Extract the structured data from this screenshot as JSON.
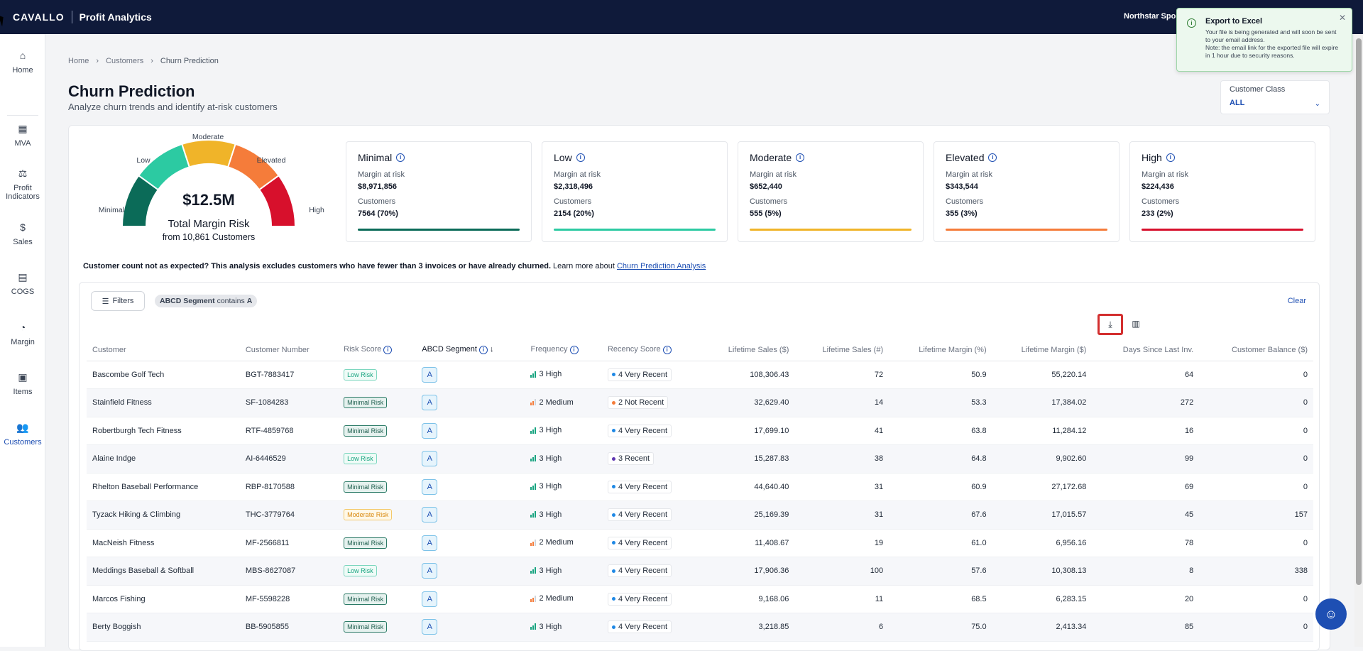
{
  "header": {
    "logo": "CAVALLO",
    "app_title": "Profit Analytics",
    "org": "Northstar Spo"
  },
  "sidebar": {
    "items": [
      {
        "label": "Home",
        "icon": "home-icon"
      },
      {
        "label": "MVA",
        "icon": "calculator-icon"
      },
      {
        "label": "Profit Indicators",
        "icon": "indicators-icon"
      },
      {
        "label": "Sales",
        "icon": "dollar-icon"
      },
      {
        "label": "COGS",
        "icon": "receipt-icon"
      },
      {
        "label": "Margin",
        "icon": "pie-chart-icon"
      },
      {
        "label": "Items",
        "icon": "items-icon"
      },
      {
        "label": "Customers",
        "icon": "customers-icon",
        "active": true
      }
    ]
  },
  "breadcrumb": [
    "Home",
    "Customers",
    "Churn Prediction"
  ],
  "page": {
    "title": "Churn Prediction",
    "subtitle": "Analyze churn trends and identify at-risk customers"
  },
  "customer_class": {
    "label": "Customer Class",
    "value": "ALL"
  },
  "gauge": {
    "value": "$12.5M",
    "label": "Total Margin Risk",
    "sub": "from 10,861 Customers",
    "segments": [
      "Minimal",
      "Low",
      "Moderate",
      "Elevated",
      "High"
    ],
    "colors": [
      "#0b6b58",
      "#2ccaa2",
      "#f0b429",
      "#f57c3a",
      "#d7102c"
    ]
  },
  "risk_cards": [
    {
      "title": "Minimal",
      "margin_label": "Margin at risk",
      "margin": "$8,971,856",
      "cust_label": "Customers",
      "customers": "7564 (70%)",
      "color": "#0b6b58"
    },
    {
      "title": "Low",
      "margin_label": "Margin at risk",
      "margin": "$2,318,496",
      "cust_label": "Customers",
      "customers": "2154 (20%)",
      "color": "#2ccaa2"
    },
    {
      "title": "Moderate",
      "margin_label": "Margin at risk",
      "margin": "$652,440",
      "cust_label": "Customers",
      "customers": "555 (5%)",
      "color": "#f0b429"
    },
    {
      "title": "Elevated",
      "margin_label": "Margin at risk",
      "margin": "$343,544",
      "cust_label": "Customers",
      "customers": "355 (3%)",
      "color": "#f57c3a"
    },
    {
      "title": "High",
      "margin_label": "Margin at risk",
      "margin": "$224,436",
      "cust_label": "Customers",
      "customers": "233 (2%)",
      "color": "#d7102c"
    }
  ],
  "note": {
    "bold": "Customer count not as expected? This analysis excludes customers who have fewer than 3 invoices or have already churned.",
    "text": " Learn more about ",
    "link": "Churn Prediction Analysis"
  },
  "filters": {
    "button": "Filters",
    "chip_field": "ABCD Segment",
    "chip_op": "contains",
    "chip_val": "A",
    "clear": "Clear"
  },
  "table": {
    "columns": [
      "Customer",
      "Customer Number",
      "Risk Score",
      "ABCD Segment",
      "Frequency",
      "Recency Score",
      "Lifetime Sales ($)",
      "Lifetime Sales (#)",
      "Lifetime Margin (%)",
      "Lifetime Margin ($)",
      "Days Since Last Inv.",
      "Customer Balance ($)"
    ],
    "rows": [
      {
        "customer": "Bascombe Golf Tech",
        "number": "BGT-7883417",
        "risk": "Low Risk",
        "seg": "A",
        "freq": "3 High",
        "rec": "4 Very Recent",
        "sales": "108,306.43",
        "sales_n": "72",
        "margin_pct": "50.9",
        "margin": "55,220.14",
        "days": "64",
        "balance": "0"
      },
      {
        "customer": "Stainfield Fitness",
        "number": "SF-1084283",
        "risk": "Minimal Risk",
        "seg": "A",
        "freq": "2 Medium",
        "rec": "2 Not Recent",
        "sales": "32,629.40",
        "sales_n": "14",
        "margin_pct": "53.3",
        "margin": "17,384.02",
        "days": "272",
        "balance": "0"
      },
      {
        "customer": "Robertburgh Tech Fitness",
        "number": "RTF-4859768",
        "risk": "Minimal Risk",
        "seg": "A",
        "freq": "3 High",
        "rec": "4 Very Recent",
        "sales": "17,699.10",
        "sales_n": "41",
        "margin_pct": "63.8",
        "margin": "11,284.12",
        "days": "16",
        "balance": "0"
      },
      {
        "customer": "Alaine Indge",
        "number": "AI-6446529",
        "risk": "Low Risk",
        "seg": "A",
        "freq": "3 High",
        "rec": "3 Recent",
        "sales": "15,287.83",
        "sales_n": "38",
        "margin_pct": "64.8",
        "margin": "9,902.60",
        "days": "99",
        "balance": "0"
      },
      {
        "customer": "Rhelton Baseball Performance",
        "number": "RBP-8170588",
        "risk": "Minimal Risk",
        "seg": "A",
        "freq": "3 High",
        "rec": "4 Very Recent",
        "sales": "44,640.40",
        "sales_n": "31",
        "margin_pct": "60.9",
        "margin": "27,172.68",
        "days": "69",
        "balance": "0"
      },
      {
        "customer": "Tyzack Hiking & Climbing",
        "number": "THC-3779764",
        "risk": "Moderate Risk",
        "seg": "A",
        "freq": "3 High",
        "rec": "4 Very Recent",
        "sales": "25,169.39",
        "sales_n": "31",
        "margin_pct": "67.6",
        "margin": "17,015.57",
        "days": "45",
        "balance": "157"
      },
      {
        "customer": "MacNeish Fitness",
        "number": "MF-2566811",
        "risk": "Minimal Risk",
        "seg": "A",
        "freq": "2 Medium",
        "rec": "4 Very Recent",
        "sales": "11,408.67",
        "sales_n": "19",
        "margin_pct": "61.0",
        "margin": "6,956.16",
        "days": "78",
        "balance": "0"
      },
      {
        "customer": "Meddings Baseball & Softball",
        "number": "MBS-8627087",
        "risk": "Low Risk",
        "seg": "A",
        "freq": "3 High",
        "rec": "4 Very Recent",
        "sales": "17,906.36",
        "sales_n": "100",
        "margin_pct": "57.6",
        "margin": "10,308.13",
        "days": "8",
        "balance": "338"
      },
      {
        "customer": "Marcos Fishing",
        "number": "MF-5598228",
        "risk": "Minimal Risk",
        "seg": "A",
        "freq": "2 Medium",
        "rec": "4 Very Recent",
        "sales": "9,168.06",
        "sales_n": "11",
        "margin_pct": "68.5",
        "margin": "6,283.15",
        "days": "20",
        "balance": "0"
      },
      {
        "customer": "Berty Boggish",
        "number": "BB-5905855",
        "risk": "Minimal Risk",
        "seg": "A",
        "freq": "3 High",
        "rec": "4 Very Recent",
        "sales": "3,218.85",
        "sales_n": "6",
        "margin_pct": "75.0",
        "margin": "2,413.34",
        "days": "85",
        "balance": "0"
      }
    ]
  },
  "toast": {
    "title": "Export to Excel",
    "body1": "Your file is being generated and will soon be sent to your email address.",
    "body2": "Note: the email link for the exported file will expire in 1 hour due to security reasons."
  },
  "colors": {
    "accent": "#1e4fb3",
    "header": "#0f1a3a"
  }
}
